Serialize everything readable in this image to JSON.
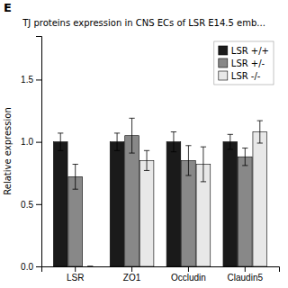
{
  "chart_data": {
    "type": "bar",
    "title": "TJ proteins expression in CNS ECs of LSR E14.5 emb...",
    "ylabel": "Relative expression",
    "annotations": [
      "E"
    ],
    "categories": [
      "LSR",
      "ZO1",
      "Occludin",
      "Claudin5"
    ],
    "series": [
      {
        "name": "LSR +/+",
        "color": "#1a1a1a",
        "values": [
          1.0,
          1.0,
          1.0,
          1.0
        ],
        "errors": [
          0.07,
          0.07,
          0.08,
          0.06
        ]
      },
      {
        "name": "LSR +/-",
        "color": "#888888",
        "values": [
          0.72,
          1.05,
          0.85,
          0.88
        ],
        "errors": [
          0.1,
          0.14,
          0.12,
          0.07
        ]
      },
      {
        "name": "LSR -/-",
        "color": "#e8e8e8",
        "values": [
          0.0,
          0.85,
          0.82,
          1.08
        ],
        "errors": [
          0.0,
          0.08,
          0.14,
          0.09
        ]
      }
    ],
    "ylim": [
      0.0,
      1.85
    ],
    "yticks": [
      {
        "value": 0.0,
        "label": "0.0"
      },
      0.5,
      {
        "value": 1.0,
        "label": "1.0"
      },
      1.5
    ],
    "legend": "upper right",
    "grid": false
  }
}
